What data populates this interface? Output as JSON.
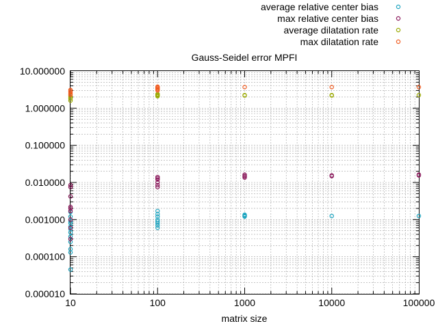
{
  "chart_data": {
    "type": "scatter",
    "title": "Gauss-Seidel error MPFI",
    "xlabel": "matrix size",
    "ylabel": "",
    "x_scale": "log",
    "y_scale": "log",
    "xlim": [
      10,
      100000
    ],
    "ylim": [
      1e-05,
      10
    ],
    "x_tick_labels": [
      "10",
      "100",
      "1000",
      "10000",
      "100000"
    ],
    "x_tick_values": [
      10,
      100,
      1000,
      10000,
      100000
    ],
    "y_tick_labels": [
      "0.000010",
      "0.000100",
      "0.001000",
      "0.010000",
      "0.100000",
      "1.000000",
      "10.000000"
    ],
    "y_tick_values": [
      1e-05,
      0.0001,
      0.001,
      0.01,
      0.1,
      1,
      10
    ],
    "grid": true,
    "legend_position": "top-right",
    "series": [
      {
        "name": "average relative center bias",
        "color": "#1fa5c0",
        "points": [
          [
            10,
            4.5e-05
          ],
          [
            10,
            0.00013
          ],
          [
            10,
            0.00016
          ],
          [
            10,
            0.00025
          ],
          [
            10,
            0.00035
          ],
          [
            10,
            0.00045
          ],
          [
            10,
            0.00055
          ],
          [
            10,
            0.00065
          ],
          [
            10,
            0.0008
          ],
          [
            10,
            0.0009
          ],
          [
            10,
            0.0012
          ],
          [
            10,
            0.0016
          ],
          [
            100,
            0.0006
          ],
          [
            100,
            0.0007
          ],
          [
            100,
            0.0008
          ],
          [
            100,
            0.0009
          ],
          [
            100,
            0.001
          ],
          [
            100,
            0.0012
          ],
          [
            100,
            0.0014
          ],
          [
            100,
            0.0017
          ],
          [
            1000,
            0.0012
          ],
          [
            1000,
            0.00125
          ],
          [
            1000,
            0.0013
          ],
          [
            1000,
            0.00135
          ],
          [
            10000,
            0.00125
          ],
          [
            100000,
            0.00125
          ]
        ]
      },
      {
        "name": "max relative center bias",
        "color": "#8b1a5c",
        "points": [
          [
            10,
            0.0003
          ],
          [
            10,
            0.0006
          ],
          [
            10,
            0.001
          ],
          [
            10,
            0.0017
          ],
          [
            10,
            0.002
          ],
          [
            10,
            0.0022
          ],
          [
            10,
            0.0042
          ],
          [
            10,
            0.0075
          ],
          [
            10,
            0.0085
          ],
          [
            100,
            0.0075
          ],
          [
            100,
            0.0085
          ],
          [
            100,
            0.01
          ],
          [
            100,
            0.012
          ],
          [
            100,
            0.013
          ],
          [
            100,
            0.014
          ],
          [
            1000,
            0.0135
          ],
          [
            1000,
            0.0145
          ],
          [
            1000,
            0.015
          ],
          [
            1000,
            0.0162
          ],
          [
            10000,
            0.0148
          ],
          [
            10000,
            0.0155
          ],
          [
            100000,
            0.0155
          ],
          [
            100000,
            0.0162
          ]
        ]
      },
      {
        "name": "average dilatation rate",
        "color": "#99a800",
        "points": [
          [
            10,
            1.6
          ],
          [
            10,
            1.8
          ],
          [
            10,
            2.0
          ],
          [
            10,
            2.2
          ],
          [
            100,
            2.1
          ],
          [
            100,
            2.2
          ],
          [
            100,
            2.3
          ],
          [
            100,
            2.4
          ],
          [
            1000,
            2.2
          ],
          [
            1000,
            2.25
          ],
          [
            10000,
            2.2
          ],
          [
            10000,
            2.25
          ],
          [
            100000,
            2.25
          ]
        ]
      },
      {
        "name": "max dilatation rate",
        "color": "#f05a1e",
        "points": [
          [
            10,
            2.3
          ],
          [
            10,
            2.5
          ],
          [
            10,
            2.7
          ],
          [
            10,
            2.9
          ],
          [
            10,
            3.1
          ],
          [
            100,
            3.0
          ],
          [
            100,
            3.2
          ],
          [
            100,
            3.4
          ],
          [
            100,
            3.6
          ],
          [
            100,
            3.8
          ],
          [
            1000,
            3.7
          ],
          [
            10000,
            3.7
          ],
          [
            100000,
            3.7
          ]
        ]
      }
    ]
  }
}
